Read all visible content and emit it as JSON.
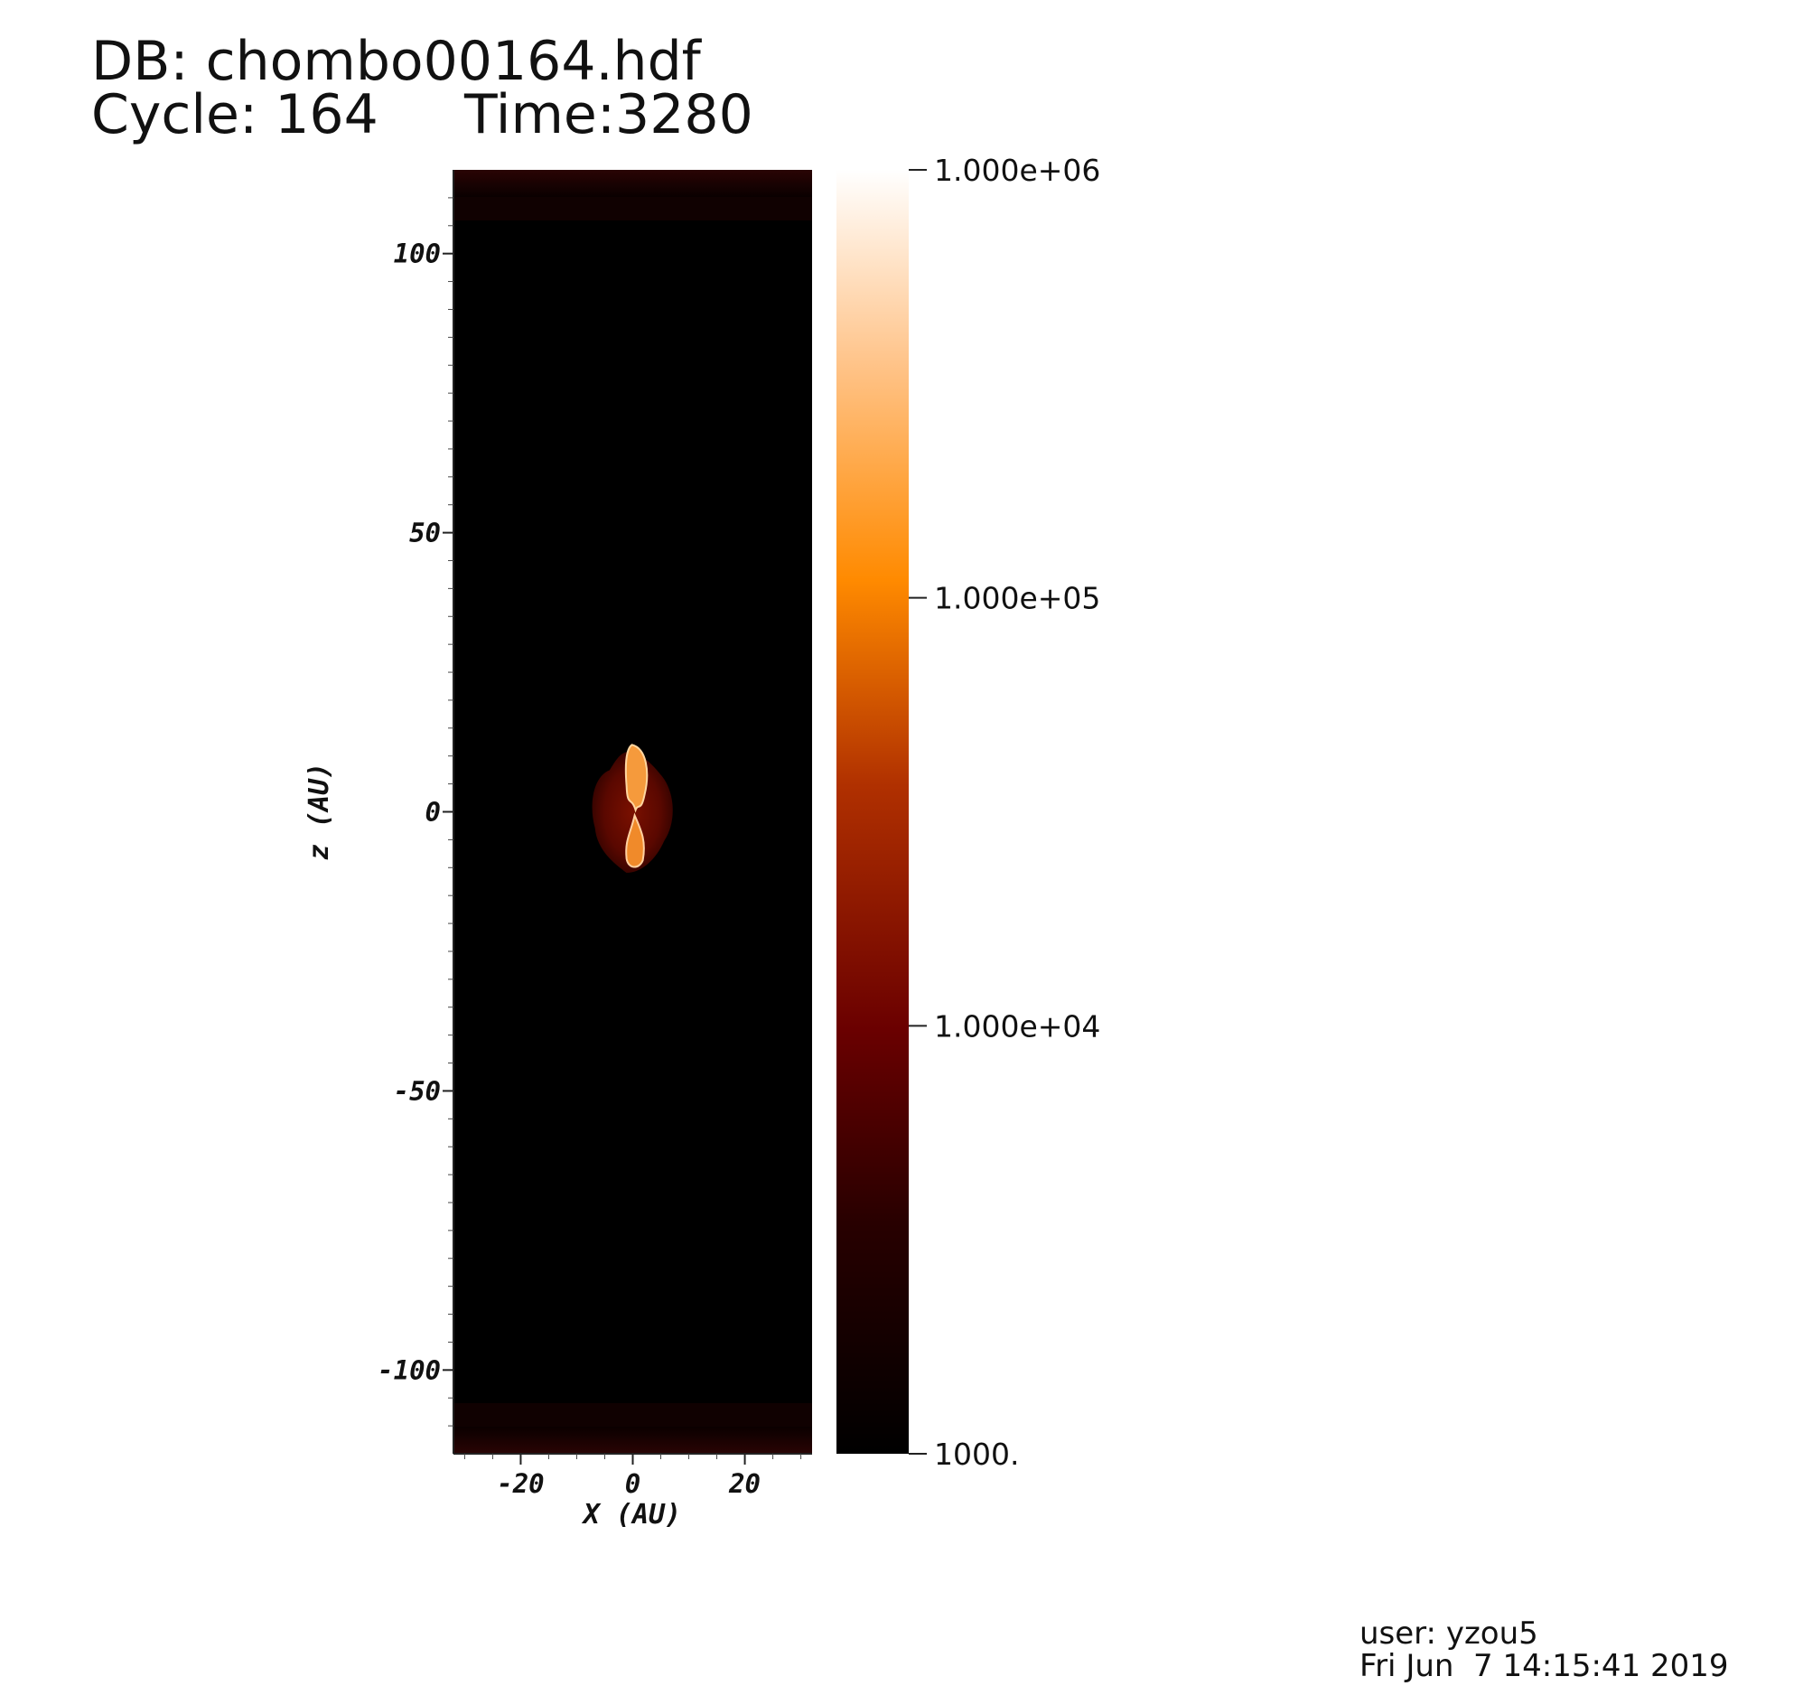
{
  "header": {
    "db_line": "DB: chombo00164.hdf",
    "cycle_line": "Cycle: 164",
    "time_line": "Time:3280"
  },
  "footer": {
    "user_line": "user: yzou5",
    "date_line": "Fri Jun  7 14:15:41 2019"
  },
  "colors": {
    "colormap": [
      "#000000",
      "#3a0000",
      "#7a0000",
      "#c84a00",
      "#ff8a00",
      "#ffc88a",
      "#ffffff"
    ]
  },
  "chart_data": {
    "type": "heatmap",
    "title": "",
    "xlabel": "X (AU)",
    "ylabel": "z (AU)",
    "xlim": [
      -32,
      32
    ],
    "ylim": [
      -115,
      115
    ],
    "xticks": [
      -20,
      0,
      20
    ],
    "xtick_labels": [
      "-20",
      "0",
      "20"
    ],
    "yticks": [
      100,
      50,
      0,
      -50,
      -100
    ],
    "ytick_labels": [
      "100",
      "50",
      "0",
      "-50",
      "-100"
    ],
    "colorbar": {
      "scale": "log",
      "range": [
        1000,
        1000000
      ],
      "ticks": [
        1000000,
        100000,
        10000,
        1000
      ],
      "tick_labels": [
        "1.000e+06",
        "1.000e+05",
        "1.000e+04",
        "1000."
      ]
    },
    "features": [
      {
        "name": "central-outflow",
        "x_center": 0,
        "z_center": 0,
        "x_halfwidth": 7.5,
        "z_halfwidth": 11.5
      },
      {
        "name": "bipolar-jet",
        "x_center": 0.5,
        "z_range": [
          -10,
          12
        ]
      }
    ],
    "grid": false
  }
}
